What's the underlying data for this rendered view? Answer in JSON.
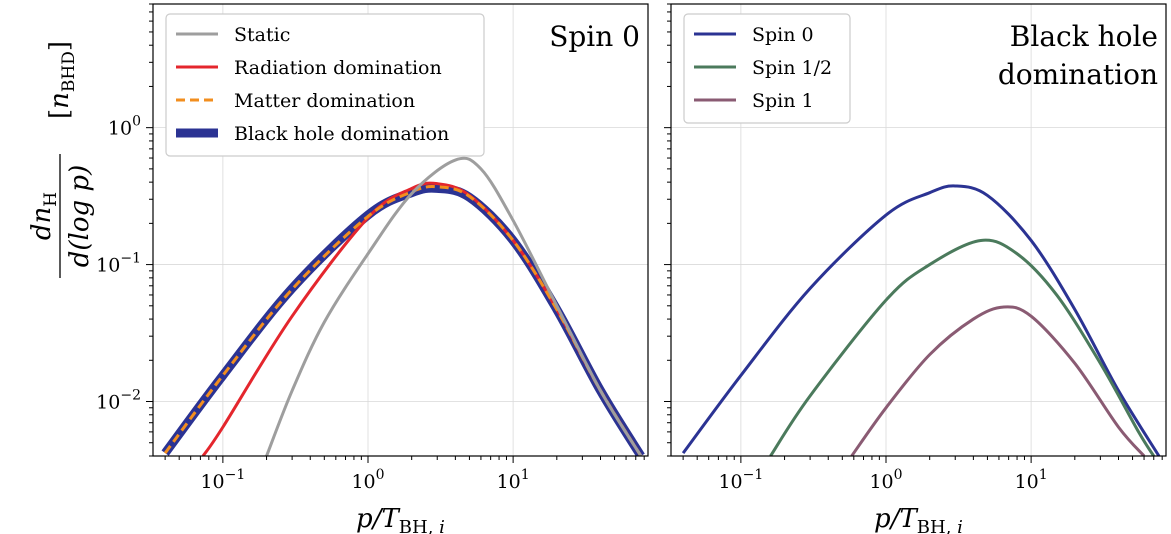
{
  "chart_data": [
    {
      "type": "line",
      "title": "Spin 0",
      "xlabel": "p/T_BH,i",
      "ylabel": "dn_H/d(log p)   [n_BHD]",
      "xscale": "log",
      "yscale": "log",
      "xlim": [
        0.033,
        85
      ],
      "ylim": [
        0.004,
        8
      ],
      "xticks": [
        "10^-1",
        "10^0",
        "10^1"
      ],
      "yticks": [
        "10^-2",
        "10^-1",
        "10^0"
      ],
      "grid": true,
      "legend_position": "top-left",
      "series": [
        {
          "name": "Black hole domination",
          "color": "#2b3393",
          "dash": "solid",
          "width": 9,
          "x": [
            0.04,
            0.1,
            0.3,
            1,
            2,
            3,
            5,
            10,
            20,
            40,
            76
          ],
          "y": [
            0.0042,
            0.0155,
            0.067,
            0.23,
            0.335,
            0.36,
            0.31,
            0.15,
            0.047,
            0.012,
            0.004
          ]
        },
        {
          "name": "Radiation domination",
          "color": "#e4262d",
          "dash": "solid",
          "width": 3,
          "x": [
            0.073,
            0.1,
            0.3,
            1,
            2,
            3,
            5,
            10,
            20,
            40,
            76
          ],
          "y": [
            0.004,
            0.0065,
            0.042,
            0.22,
            0.36,
            0.39,
            0.32,
            0.15,
            0.047,
            0.012,
            0.004
          ]
        },
        {
          "name": "Matter domination",
          "color": "#f28e1e",
          "dash": "dashed",
          "width": 3,
          "x": [
            0.04,
            0.1,
            0.3,
            1,
            2,
            3,
            5,
            10,
            20,
            40,
            76
          ],
          "y": [
            0.0042,
            0.0155,
            0.066,
            0.225,
            0.34,
            0.37,
            0.315,
            0.15,
            0.047,
            0.012,
            0.004
          ]
        },
        {
          "name": "Static",
          "color": "#9e9e9e",
          "dash": "solid",
          "width": 3,
          "x": [
            0.2,
            0.3,
            0.5,
            1,
            2,
            4,
            6,
            10,
            20,
            40,
            76
          ],
          "y": [
            0.004,
            0.012,
            0.038,
            0.12,
            0.33,
            0.58,
            0.5,
            0.21,
            0.05,
            0.012,
            0.004
          ]
        }
      ],
      "legend_order": [
        "Static",
        "Radiation domination",
        "Matter domination",
        "Black hole domination"
      ]
    },
    {
      "type": "line",
      "title": "Black hole domination",
      "title_lines": [
        "Black hole",
        "domination"
      ],
      "xlabel": "p/T_BH,i",
      "xscale": "log",
      "yscale": "log",
      "xlim": [
        0.033,
        85
      ],
      "ylim": [
        0.004,
        8
      ],
      "xticks": [
        "10^-1",
        "10^0",
        "10^1"
      ],
      "grid": true,
      "legend_position": "top-left",
      "series": [
        {
          "name": "Spin 0",
          "color": "#2b3393",
          "dash": "solid",
          "width": 3,
          "x": [
            0.04,
            0.1,
            0.3,
            1,
            2,
            3,
            5,
            10,
            20,
            40,
            76
          ],
          "y": [
            0.0042,
            0.0155,
            0.067,
            0.23,
            0.335,
            0.375,
            0.32,
            0.15,
            0.047,
            0.012,
            0.004
          ]
        },
        {
          "name": "Spin 1/2",
          "color": "#4b7a5c",
          "dash": "solid",
          "width": 3,
          "x": [
            0.16,
            0.3,
            1,
            2,
            4.5,
            8,
            15,
            30,
            55,
            70
          ],
          "y": [
            0.004,
            0.011,
            0.055,
            0.1,
            0.15,
            0.12,
            0.06,
            0.019,
            0.006,
            0.004
          ]
        },
        {
          "name": "Spin 1",
          "color": "#8a5b73",
          "dash": "solid",
          "width": 3,
          "x": [
            0.58,
            1,
            2,
            4,
            6.5,
            10,
            20,
            40,
            60
          ],
          "y": [
            0.004,
            0.009,
            0.022,
            0.04,
            0.049,
            0.042,
            0.019,
            0.0065,
            0.004
          ]
        }
      ],
      "legend_order": [
        "Spin 0",
        "Spin 1/2",
        "Spin 1"
      ]
    }
  ]
}
